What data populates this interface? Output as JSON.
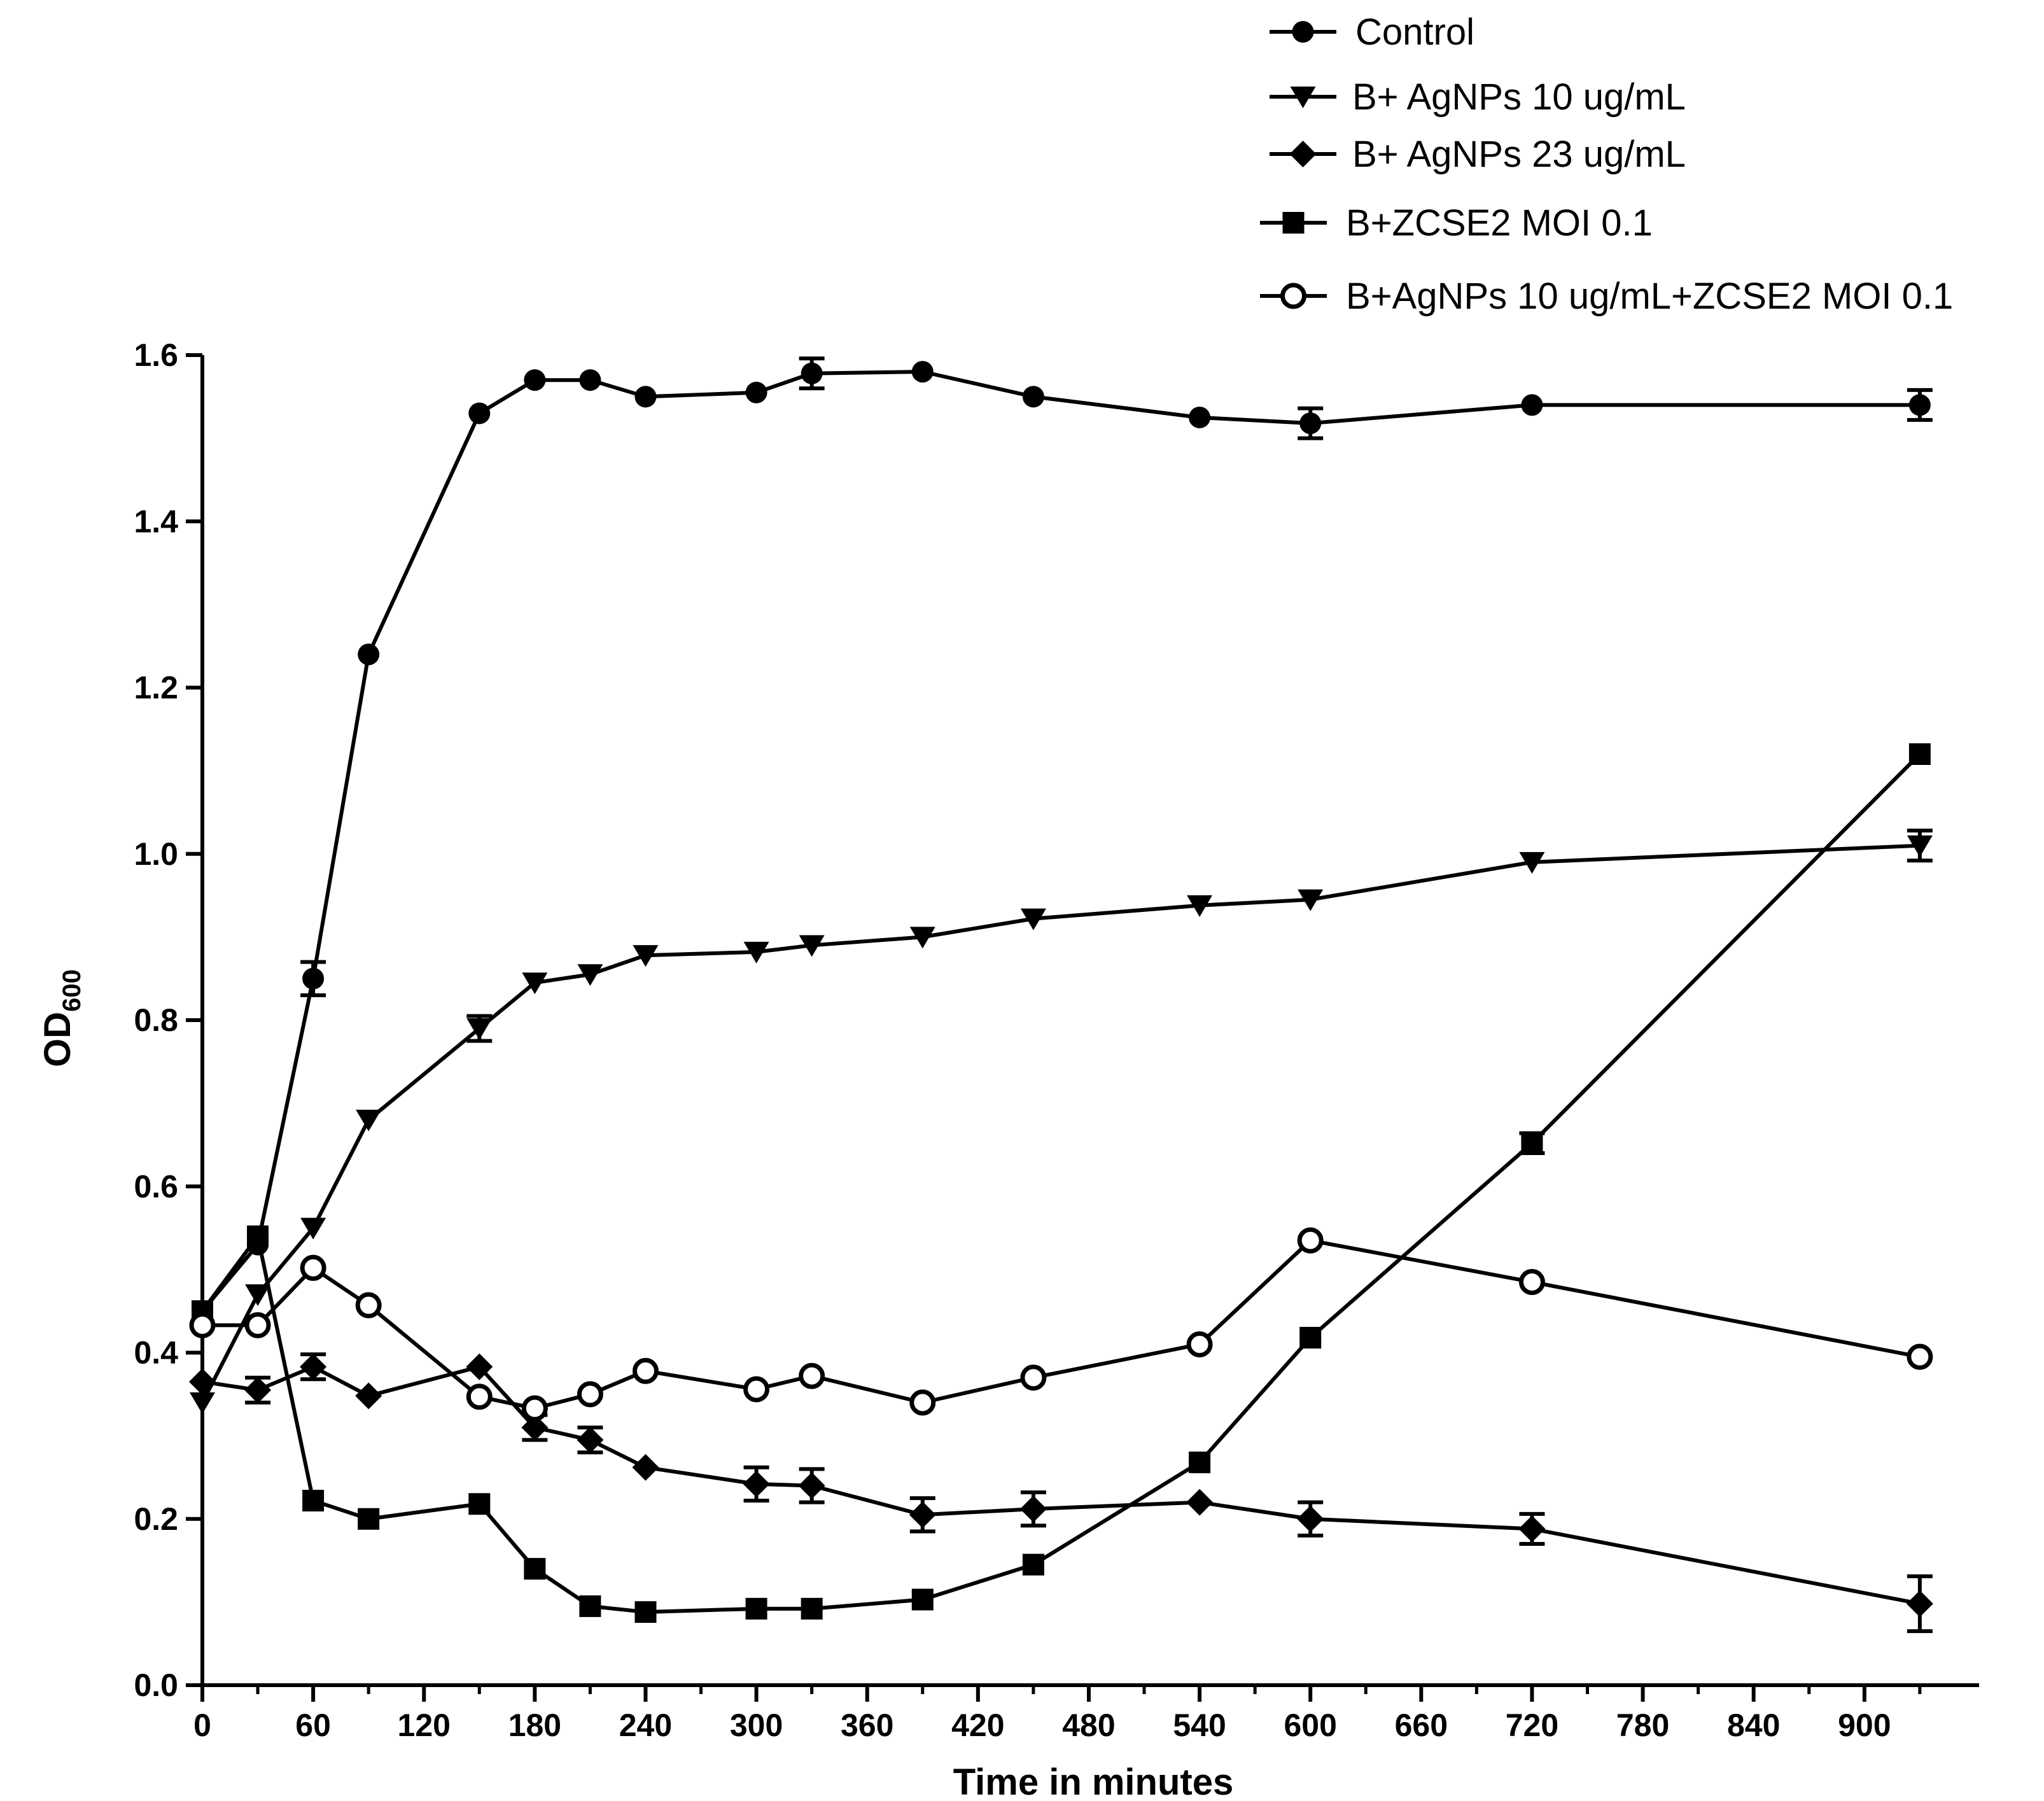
{
  "chart_data": {
    "type": "line",
    "title": "",
    "xlabel": "Time in minutes",
    "ylabel": "OD",
    "ylabel_subscript": "600",
    "xlim": [
      0,
      960
    ],
    "ylim": [
      0.0,
      1.6
    ],
    "xticks": [
      0,
      60,
      120,
      180,
      240,
      300,
      360,
      420,
      480,
      540,
      600,
      660,
      720,
      780,
      840,
      900
    ],
    "xtick_labels": [
      "0",
      "60",
      "120",
      "180",
      "240",
      "300",
      "360",
      "420",
      "480",
      "540",
      "600",
      "660",
      "720",
      "780",
      "840",
      "900"
    ],
    "yticks": [
      0.0,
      0.2,
      0.4,
      0.6,
      0.8,
      1.0,
      1.2,
      1.4,
      1.6
    ],
    "ytick_labels": [
      "0.0",
      "0.2",
      "0.4",
      "0.6",
      "0.8",
      "1.0",
      "1.2",
      "1.4",
      "1.6"
    ],
    "grid": false,
    "legend_position": "top-right",
    "series": [
      {
        "name": "Control",
        "marker": "circle",
        "x": [
          0,
          30,
          60,
          90,
          150,
          180,
          210,
          240,
          300,
          330,
          390,
          450,
          540,
          600,
          720,
          930
        ],
        "values": [
          0.45,
          0.53,
          0.85,
          1.24,
          1.53,
          1.57,
          1.57,
          1.55,
          1.555,
          1.578,
          1.58,
          1.55,
          1.525,
          1.518,
          1.54,
          1.54
        ],
        "errors": [
          0,
          0,
          0.02,
          0,
          0,
          0,
          0,
          0,
          0,
          0.018,
          0,
          0,
          0,
          0.018,
          0,
          0.018
        ]
      },
      {
        "name": "B+ AgNPs 10 ug/mL",
        "marker": "triangle-down",
        "x": [
          0,
          30,
          60,
          90,
          150,
          180,
          210,
          240,
          300,
          330,
          390,
          450,
          540,
          600,
          720,
          930
        ],
        "values": [
          0.34,
          0.47,
          0.55,
          0.68,
          0.79,
          0.845,
          0.855,
          0.878,
          0.882,
          0.89,
          0.9,
          0.922,
          0.938,
          0.945,
          0.99,
          1.01
        ],
        "errors": [
          0,
          0,
          0,
          0,
          0.015,
          0,
          0,
          0,
          0,
          0,
          0,
          0,
          0,
          0,
          0,
          0.018
        ]
      },
      {
        "name": "B+ AgNPs 23 ug/mL",
        "marker": "diamond",
        "x": [
          0,
          30,
          60,
          90,
          150,
          180,
          210,
          240,
          300,
          330,
          390,
          450,
          540,
          600,
          720,
          930
        ],
        "values": [
          0.365,
          0.355,
          0.383,
          0.348,
          0.383,
          0.31,
          0.295,
          0.262,
          0.242,
          0.24,
          0.205,
          0.212,
          0.22,
          0.2,
          0.188,
          0.098
        ],
        "errors": [
          0,
          0.015,
          0.015,
          0,
          0,
          0.015,
          0.015,
          0,
          0.02,
          0.02,
          0.02,
          0.02,
          0,
          0.02,
          0.018,
          0.033
        ]
      },
      {
        "name": "B+ZCSE2 MOI 0.1",
        "marker": "square",
        "x": [
          0,
          30,
          60,
          90,
          150,
          180,
          210,
          240,
          300,
          330,
          390,
          450,
          540,
          600,
          720,
          930
        ],
        "values": [
          0.45,
          0.54,
          0.222,
          0.2,
          0.218,
          0.14,
          0.095,
          0.088,
          0.092,
          0.092,
          0.103,
          0.145,
          0.268,
          0.418,
          0.652,
          1.12
        ],
        "errors": [
          0,
          0,
          0,
          0,
          0,
          0,
          0,
          0,
          0,
          0,
          0,
          0,
          0,
          0,
          0.012,
          0
        ]
      },
      {
        "name": "B+AgNPs 10 ug/mL+ZCSE2 MOI 0.1",
        "marker": "open-circle",
        "x": [
          0,
          30,
          60,
          90,
          150,
          180,
          210,
          240,
          300,
          330,
          390,
          450,
          540,
          600,
          720,
          930
        ],
        "values": [
          0.433,
          0.433,
          0.502,
          0.457,
          0.347,
          0.333,
          0.35,
          0.378,
          0.356,
          0.372,
          0.34,
          0.37,
          0.41,
          0.535,
          0.485,
          0.395
        ],
        "errors": [
          0,
          0,
          0,
          0,
          0,
          0,
          0,
          0,
          0,
          0,
          0,
          0,
          0,
          0,
          0,
          0
        ]
      }
    ]
  }
}
